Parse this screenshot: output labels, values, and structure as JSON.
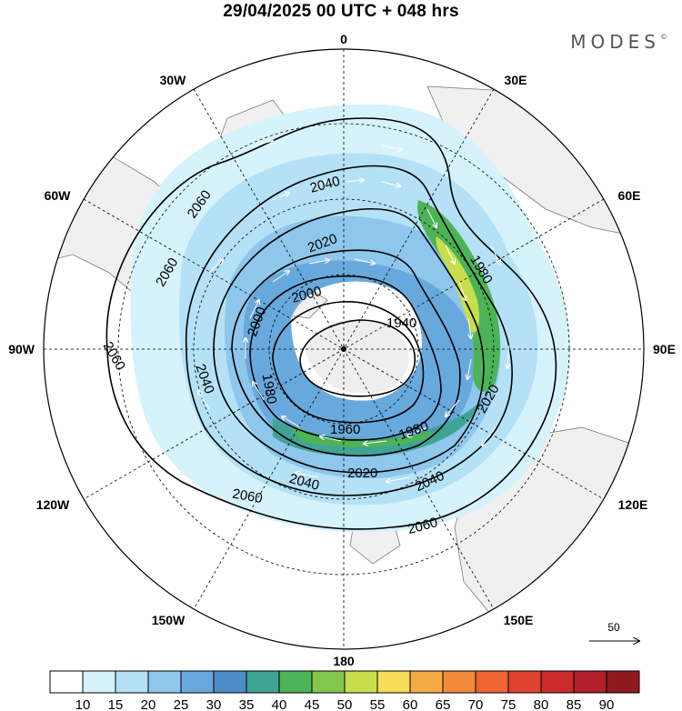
{
  "title": "29/04/2025  00 UTC  + 048 hrs",
  "brand": "MODES",
  "brand_mark": "©",
  "longitude_labels": {
    "top": "0",
    "bottom": "180",
    "left": "90W",
    "right": "90E",
    "ul30": "30W",
    "ur30": "30E",
    "ul60": "60W",
    "ur60": "60E",
    "ll120": "120W",
    "lr120": "120E",
    "ll150": "150W",
    "lr150": "150E"
  },
  "contour_labels": [
    "2060",
    "2060",
    "2040",
    "2040",
    "2020",
    "2000",
    "1980",
    "1960",
    "1940",
    "1980",
    "2020",
    "2040",
    "2060",
    "2060",
    "2040",
    "2020",
    "1980",
    "2000",
    "2060"
  ],
  "vector_reference": "50",
  "colorbar": {
    "colors": [
      "#ffffff",
      "#d6f2fb",
      "#b4e1f6",
      "#8ec6ec",
      "#68a9dd",
      "#4c8dc8",
      "#3fa494",
      "#4db358",
      "#83c74d",
      "#c8de4c",
      "#f6dc58",
      "#f6aa45",
      "#f38a3a",
      "#ee6432",
      "#e0432f",
      "#cb2a2d",
      "#b0202a",
      "#8e1a1f"
    ],
    "labels": [
      "10",
      "15",
      "20",
      "25",
      "30",
      "35",
      "40",
      "45",
      "50",
      "55",
      "60",
      "65",
      "70",
      "75",
      "80",
      "85",
      "90"
    ]
  },
  "colors": {
    "land": "#f0f0f0",
    "coast": "#7a7a7a",
    "grid": "#000000",
    "contour": "#000000"
  },
  "chart_data": {
    "type": "polar stereographic map",
    "projection": "north polar stereographic",
    "contour_levels": [
      1940,
      1960,
      1980,
      2000,
      2020,
      2040,
      2060
    ],
    "wind_speed_levels": [
      10,
      15,
      20,
      25,
      30,
      35,
      40,
      45,
      50,
      55,
      60,
      65,
      70,
      75,
      80,
      85,
      90
    ],
    "vector_reference_speed": 50
  }
}
